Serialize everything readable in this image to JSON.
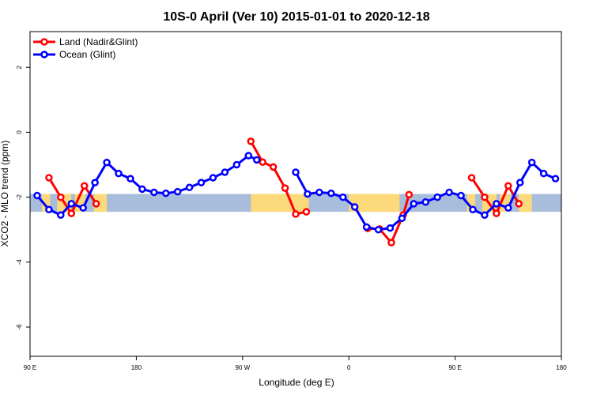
{
  "chart_data": {
    "type": "line",
    "title": "10S-0 April (Ver 10)   2015-01-01 to 2020-12-18",
    "xlabel": "Longitude (deg E)",
    "ylabel": "XCO2 - MLO trend (ppm)",
    "xlim": [
      90,
      540
    ],
    "ylim": [
      -6.9,
      3.1
    ],
    "x_ticks": [
      {
        "value": 90,
        "label": "90 E"
      },
      {
        "value": 180,
        "label": "180"
      },
      {
        "value": 270,
        "label": "90 W"
      },
      {
        "value": 360,
        "label": "0"
      },
      {
        "value": 450,
        "label": "90 E"
      },
      {
        "value": 540,
        "label": "180"
      }
    ],
    "y_ticks": [
      {
        "value": 2,
        "label": "2"
      },
      {
        "value": 0,
        "label": "0"
      },
      {
        "value": -2,
        "label": "-2"
      },
      {
        "value": -4,
        "label": "-4"
      },
      {
        "value": -6,
        "label": "-6"
      }
    ],
    "legend": {
      "position": "top-left"
    },
    "map_band": {
      "ymin": -2.45,
      "ymax": -1.9,
      "ocean_color": "#a7bddb",
      "land_color": "#fcd97a",
      "land_x_ranges": [
        [
          100,
          107
        ],
        [
          113,
          125
        ],
        [
          128,
          137
        ],
        [
          144,
          155
        ],
        [
          277,
          326
        ],
        [
          360,
          403
        ],
        [
          460,
          467
        ],
        [
          473,
          485
        ],
        [
          488,
          497
        ],
        [
          504,
          515
        ]
      ]
    },
    "series": [
      {
        "name": "Land (Nadir&Glint)",
        "color": "#ff0000",
        "segments": [
          {
            "x": [
              106,
              116,
              125,
              136,
              146
            ],
            "y": [
              -1.4,
              -2.0,
              -2.5,
              -1.65,
              -2.2
            ]
          },
          {
            "x": [
              277,
              287,
              296,
              306,
              315,
              324
            ],
            "y": [
              -0.28,
              -0.92,
              -1.07,
              -1.72,
              -2.52,
              -2.45
            ]
          },
          {
            "x": [
              376,
              386,
              396,
              406,
              411
            ],
            "y": [
              -2.96,
              -2.98,
              -3.4,
              -2.55,
              -1.92
            ]
          },
          {
            "x": [
              464,
              475,
              485,
              495,
              504
            ],
            "y": [
              -1.4,
              -2.0,
              -2.5,
              -1.65,
              -2.2
            ]
          }
        ]
      },
      {
        "name": "Ocean (Glint)",
        "color": "#0000ff",
        "segments": [
          {
            "x": [
              96,
              106,
              116,
              125,
              135,
              145,
              155,
              165,
              175,
              185,
              195,
              205,
              215,
              225,
              235,
              245,
              255,
              265,
              275,
              282
            ],
            "y": [
              -1.95,
              -2.38,
              -2.55,
              -2.2,
              -2.33,
              -1.55,
              -0.93,
              -1.27,
              -1.43,
              -1.75,
              -1.85,
              -1.88,
              -1.83,
              -1.7,
              -1.55,
              -1.4,
              -1.23,
              -1.0,
              -0.72,
              -0.85
            ]
          },
          {
            "x": [
              315,
              325,
              335,
              345,
              355,
              365,
              375,
              385,
              395,
              405,
              415,
              425,
              435,
              445,
              455,
              465,
              475,
              485,
              495,
              505,
              515,
              525,
              535
            ],
            "y": [
              -1.23,
              -1.9,
              -1.85,
              -1.88,
              -2.0,
              -2.3,
              -2.92,
              -3.0,
              -2.95,
              -2.65,
              -2.2,
              -2.15,
              -2.0,
              -1.85,
              -1.95,
              -2.38,
              -2.55,
              -2.2,
              -2.33,
              -1.55,
              -0.93,
              -1.27,
              -1.43
            ]
          }
        ]
      }
    ]
  }
}
